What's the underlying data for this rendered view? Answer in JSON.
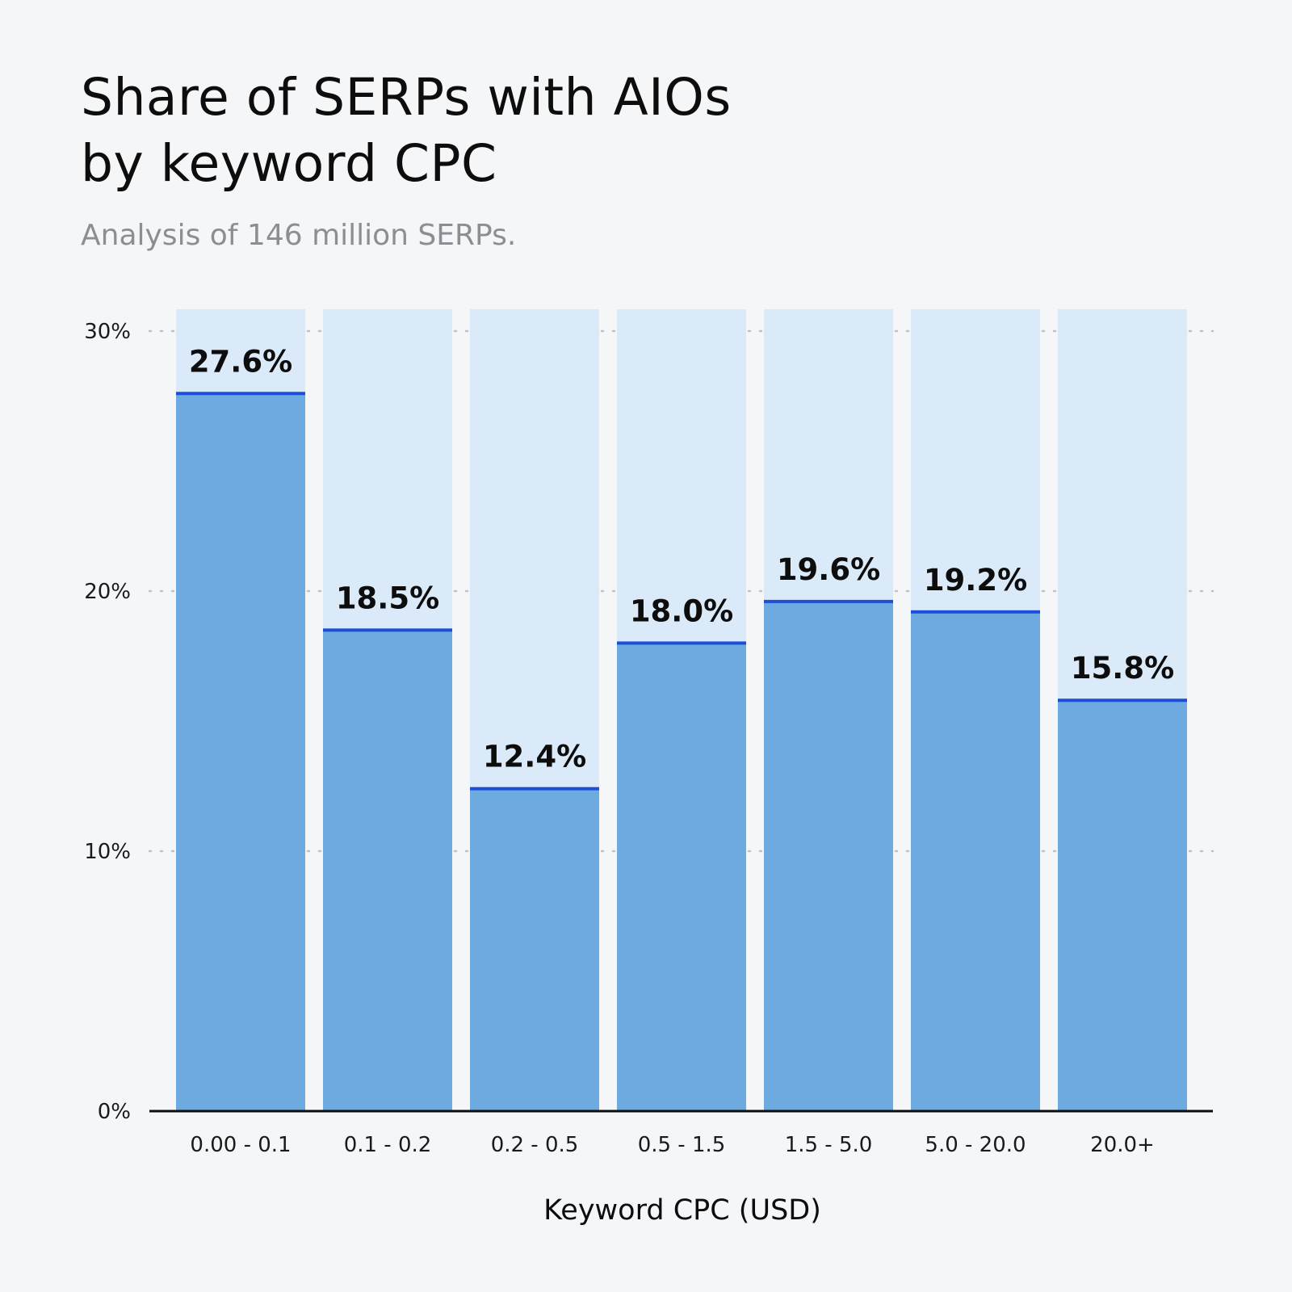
{
  "header": {
    "title_line1": "Share of SERPs with AIOs",
    "title_line2": "by keyword CPC",
    "subtitle": "Analysis of 146 million SERPs."
  },
  "colors": {
    "background": "#f4f6f8",
    "bar_fill": "#6caae0",
    "bar_background": "#dbeaf9",
    "bar_top_line": "#1d4fd6"
  },
  "chart_data": {
    "type": "bar",
    "title": "Share of SERPs with AIOs by keyword CPC",
    "subtitle": "Analysis of 146 million SERPs.",
    "xlabel": "Keyword CPC (USD)",
    "ylabel": "",
    "categories": [
      "0.00 - 0.1",
      "0.1 - 0.2",
      "0.2 - 0.5",
      "0.5 - 1.5",
      "1.5 - 5.0",
      "5.0 - 20.0",
      "20.0+"
    ],
    "values": [
      27.6,
      18.5,
      12.4,
      18.0,
      19.6,
      19.2,
      15.8
    ],
    "data_labels": [
      "27.6%",
      "18.5%",
      "12.4%",
      "18.0%",
      "19.6%",
      "19.2%",
      "15.8%"
    ],
    "ylim": [
      0,
      30
    ],
    "yticks": [
      0,
      10,
      20,
      30
    ],
    "ytick_labels": [
      "0%",
      "10%",
      "20%",
      "30%"
    ],
    "grid": true,
    "legend": "none"
  }
}
